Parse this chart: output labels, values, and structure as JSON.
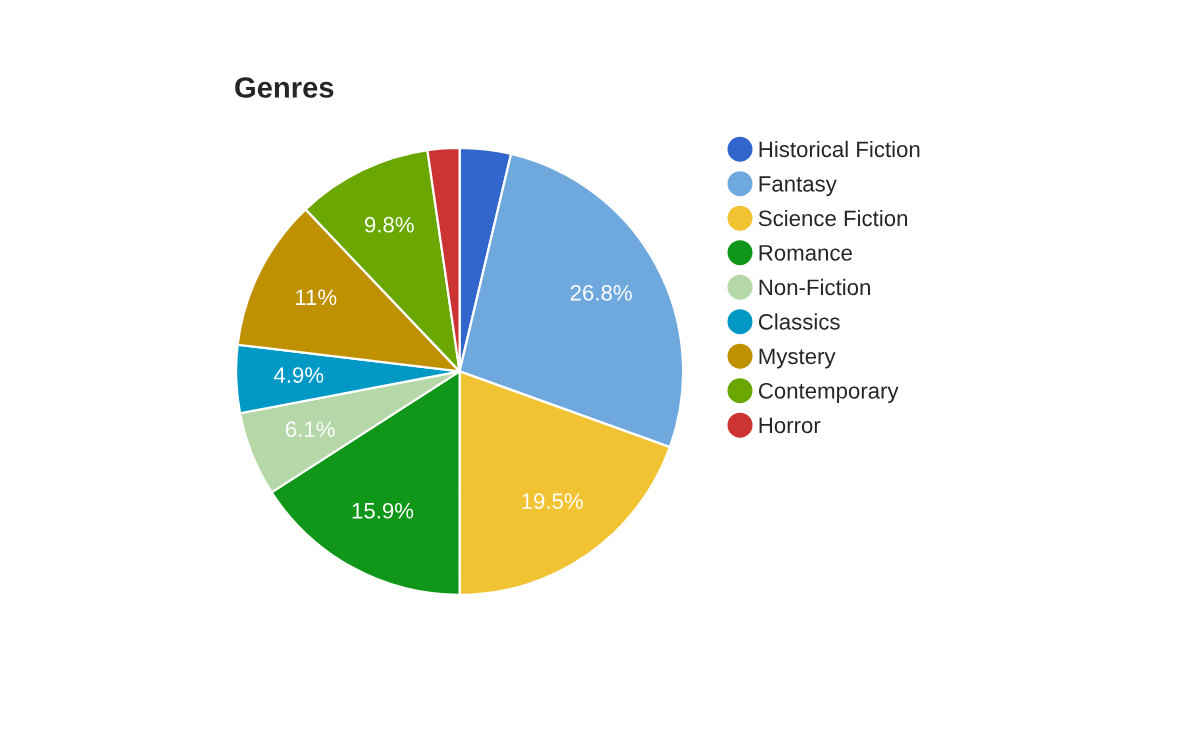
{
  "chart_data": {
    "type": "pie",
    "title": "Genres",
    "categories": [
      "Historical Fiction",
      "Fantasy",
      "Science Fiction",
      "Romance",
      "Non-Fiction",
      "Classics",
      "Mystery",
      "Contemporary",
      "Horror"
    ],
    "values": [
      3.7,
      26.8,
      19.5,
      15.9,
      6.1,
      4.9,
      11,
      9.8,
      2.3
    ],
    "value_labels": [
      null,
      "26.8%",
      "19.5%",
      "15.9%",
      "6.1%",
      "4.9%",
      "11%",
      "9.8%",
      null
    ],
    "colors": [
      "#3366cc",
      "#6fa8dc",
      "#f1c232",
      "#109618",
      "#b6d7a8",
      "#0099c6",
      "#bf9000",
      "#6aa700",
      "#cc3333"
    ],
    "legend": "right"
  }
}
